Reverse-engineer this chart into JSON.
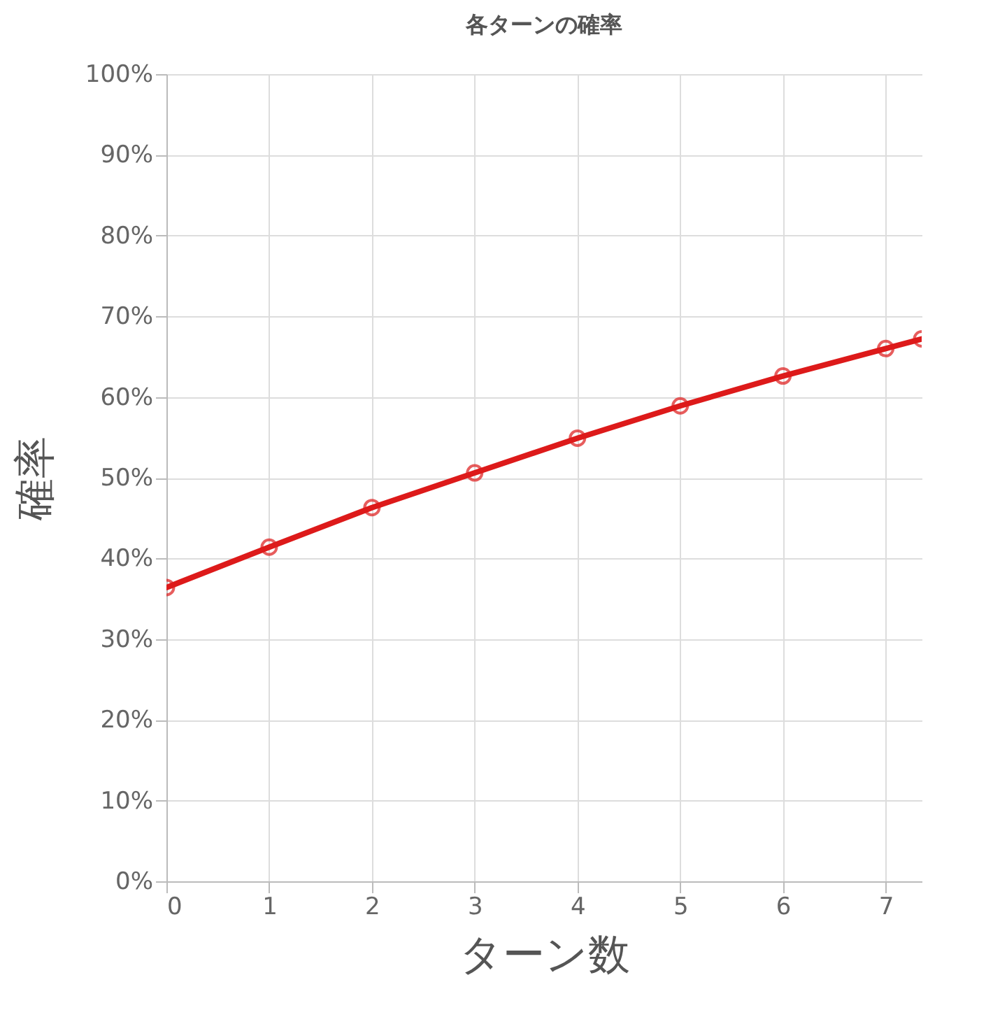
{
  "chart_data": {
    "type": "line",
    "title": "各ターンの確率",
    "xlabel": "ターン数",
    "ylabel": "確率",
    "x": [
      0,
      1,
      2,
      3,
      4,
      5,
      6,
      7,
      7.35
    ],
    "series": [
      {
        "color": "#dd1a1a",
        "values": [
          36.4,
          41.4,
          46.3,
          50.6,
          54.9,
          58.9,
          62.6,
          66.0,
          67.2
        ]
      }
    ],
    "xlim": [
      0,
      7.35
    ],
    "xticks": [
      0,
      1,
      2,
      3,
      4,
      5,
      6,
      7
    ],
    "ylim": [
      0,
      100
    ],
    "yticks": [
      {
        "value": 0,
        "label": "0%"
      },
      {
        "value": 10,
        "label": "10%"
      },
      {
        "value": 20,
        "label": "20%"
      },
      {
        "value": 30,
        "label": "30%"
      },
      {
        "value": 40,
        "label": "40%"
      },
      {
        "value": 50,
        "label": "50%"
      },
      {
        "value": 60,
        "label": "60%"
      },
      {
        "value": 70,
        "label": "70%"
      },
      {
        "value": 80,
        "label": "80%"
      },
      {
        "value": 90,
        "label": "90%"
      },
      {
        "value": 100,
        "label": "100%"
      }
    ],
    "grid": true,
    "marker": "circle",
    "line_style": "solid"
  }
}
